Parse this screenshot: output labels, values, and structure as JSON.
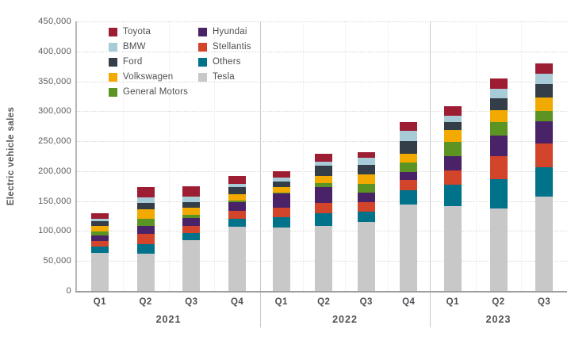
{
  "chart_data": {
    "type": "bar",
    "stacked": true,
    "title": "",
    "ylabel": "Electric vehicle sales",
    "xlabel": "",
    "ylim": [
      0,
      450000
    ],
    "ytick_step": 50000,
    "grid": "horizontal-dotted",
    "legend_position": "top-left-inside",
    "categories": [
      "Q1",
      "Q2",
      "Q3",
      "Q4",
      "Q1",
      "Q2",
      "Q3",
      "Q4",
      "Q1",
      "Q2",
      "Q3"
    ],
    "year_groups": [
      {
        "label": "2021",
        "quarters": 4
      },
      {
        "label": "2022",
        "quarters": 4
      },
      {
        "label": "2023",
        "quarters": 3
      }
    ],
    "series": [
      {
        "name": "Tesla",
        "color": "#c8c8c9",
        "values": [
          64000,
          62000,
          85000,
          107000,
          106000,
          108000,
          115000,
          144000,
          142000,
          138000,
          158000
        ]
      },
      {
        "name": "Others",
        "color": "#00728a",
        "values": [
          10000,
          15500,
          12000,
          14000,
          17500,
          22000,
          17500,
          24000,
          35000,
          48500,
          48500
        ]
      },
      {
        "name": "Stellantis",
        "color": "#d2452a",
        "values": [
          9000,
          17500,
          12000,
          13000,
          15500,
          17500,
          15500,
          17500,
          24000,
          38000,
          39500
        ]
      },
      {
        "name": "Hyundai",
        "color": "#4a2268",
        "values": [
          9000,
          13000,
          12500,
          14000,
          24000,
          26500,
          15500,
          13000,
          24000,
          35000,
          37500
        ]
      },
      {
        "name": "General Motors",
        "color": "#5c9423",
        "values": [
          7000,
          13000,
          5000,
          3000,
          1500,
          6500,
          15500,
          15500,
          24000,
          22000,
          17500
        ]
      },
      {
        "name": "Volkswagen",
        "color": "#f2a900",
        "values": [
          10000,
          15500,
          13000,
          10500,
          9000,
          11000,
          15500,
          15500,
          20000,
          20000,
          22000
        ]
      },
      {
        "name": "Ford",
        "color": "#333e48",
        "values": [
          8000,
          11000,
          9000,
          11500,
          9000,
          17500,
          15500,
          20000,
          13000,
          20000,
          22000
        ]
      },
      {
        "name": "BMW",
        "color": "#a8ccd7",
        "values": [
          4000,
          9000,
          9000,
          6000,
          6500,
          6500,
          13000,
          17500,
          11000,
          15500,
          17500
        ]
      },
      {
        "name": "Toyota",
        "color": "#9d1d33",
        "values": [
          9000,
          17500,
          17500,
          12500,
          11000,
          13000,
          9000,
          15500,
          15500,
          17500,
          17500
        ]
      }
    ],
    "legend": {
      "columns": [
        [
          "Toyota",
          "BMW",
          "Ford",
          "Volkswagen",
          "General Motors"
        ],
        [
          "Hyundai",
          "Stellantis",
          "Others",
          "Tesla"
        ]
      ]
    }
  }
}
